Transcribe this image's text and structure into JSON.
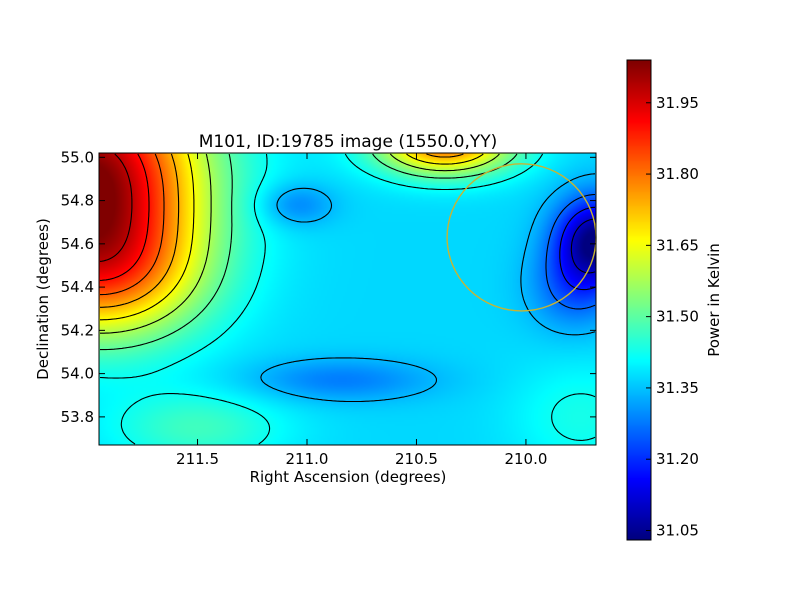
{
  "chart_data": {
    "type": "heatmap",
    "title": "M101, ID:19785 image (1550.0,YY)",
    "xlabel": "Right Ascension (degrees)",
    "ylabel": "Declination (degrees)",
    "xlim": [
      211.95,
      209.68
    ],
    "ylim": [
      53.67,
      55.02
    ],
    "x_ticks": [
      {
        "value": 211.5,
        "label": "211.5"
      },
      {
        "value": 211.0,
        "label": "211.0"
      },
      {
        "value": 210.5,
        "label": "210.5"
      },
      {
        "value": 210.0,
        "label": "210.0"
      }
    ],
    "y_ticks": [
      {
        "value": 53.8,
        "label": "53.8"
      },
      {
        "value": 54.0,
        "label": "54.0"
      },
      {
        "value": 54.2,
        "label": "54.2"
      },
      {
        "value": 54.4,
        "label": "54.4"
      },
      {
        "value": 54.6,
        "label": "54.6"
      },
      {
        "value": 54.8,
        "label": "54.8"
      },
      {
        "value": 55.0,
        "label": "55.0"
      }
    ],
    "colorbar": {
      "label": "Power in Kelvin",
      "colormap": "jet",
      "range": [
        31.03,
        32.04
      ],
      "ticks": [
        {
          "value": 31.05,
          "label": "31.05"
        },
        {
          "value": 31.2,
          "label": "31.20"
        },
        {
          "value": 31.35,
          "label": "31.35"
        },
        {
          "value": 31.5,
          "label": "31.50"
        },
        {
          "value": 31.65,
          "label": "31.65"
        },
        {
          "value": 31.8,
          "label": "31.80"
        },
        {
          "value": 31.95,
          "label": "31.95"
        }
      ]
    },
    "base_level": 31.37,
    "features": [
      {
        "ra": 212.0,
        "dec": 54.92,
        "amplitude": 0.66,
        "sigma_ra": 0.36,
        "sigma_dec": 0.34
      },
      {
        "ra": 211.92,
        "dec": 54.45,
        "amplitude": 0.3,
        "sigma_ra": 0.32,
        "sigma_dec": 0.22
      },
      {
        "ra": 210.37,
        "dec": 55.06,
        "amplitude": 0.44,
        "sigma_ra": 0.22,
        "sigma_dec": 0.1
      },
      {
        "ra": 209.68,
        "dec": 54.62,
        "amplitude": -0.33,
        "sigma_ra": 0.13,
        "sigma_dec": 0.14
      },
      {
        "ra": 209.78,
        "dec": 54.4,
        "amplitude": -0.12,
        "sigma_ra": 0.14,
        "sigma_dec": 0.14
      },
      {
        "ra": 210.85,
        "dec": 53.97,
        "amplitude": -0.09,
        "sigma_ra": 0.3,
        "sigma_dec": 0.07
      },
      {
        "ra": 211.05,
        "dec": 54.78,
        "amplitude": -0.09,
        "sigma_ra": 0.12,
        "sigma_dec": 0.07
      },
      {
        "ra": 209.75,
        "dec": 53.8,
        "amplitude": 0.06,
        "sigma_ra": 0.22,
        "sigma_dec": 0.18
      },
      {
        "ra": 211.5,
        "dec": 53.75,
        "amplitude": 0.1,
        "sigma_ra": 0.28,
        "sigma_dec": 0.12
      }
    ],
    "contour_levels": [
      31.1,
      31.18,
      31.26,
      31.34,
      31.42,
      31.5,
      31.58,
      31.66,
      31.74,
      31.82,
      31.9,
      31.98
    ],
    "annotations": [
      {
        "type": "circle",
        "ra": 210.02,
        "dec": 54.63,
        "radius_deg": 0.34,
        "color": "#c8b432"
      }
    ]
  }
}
